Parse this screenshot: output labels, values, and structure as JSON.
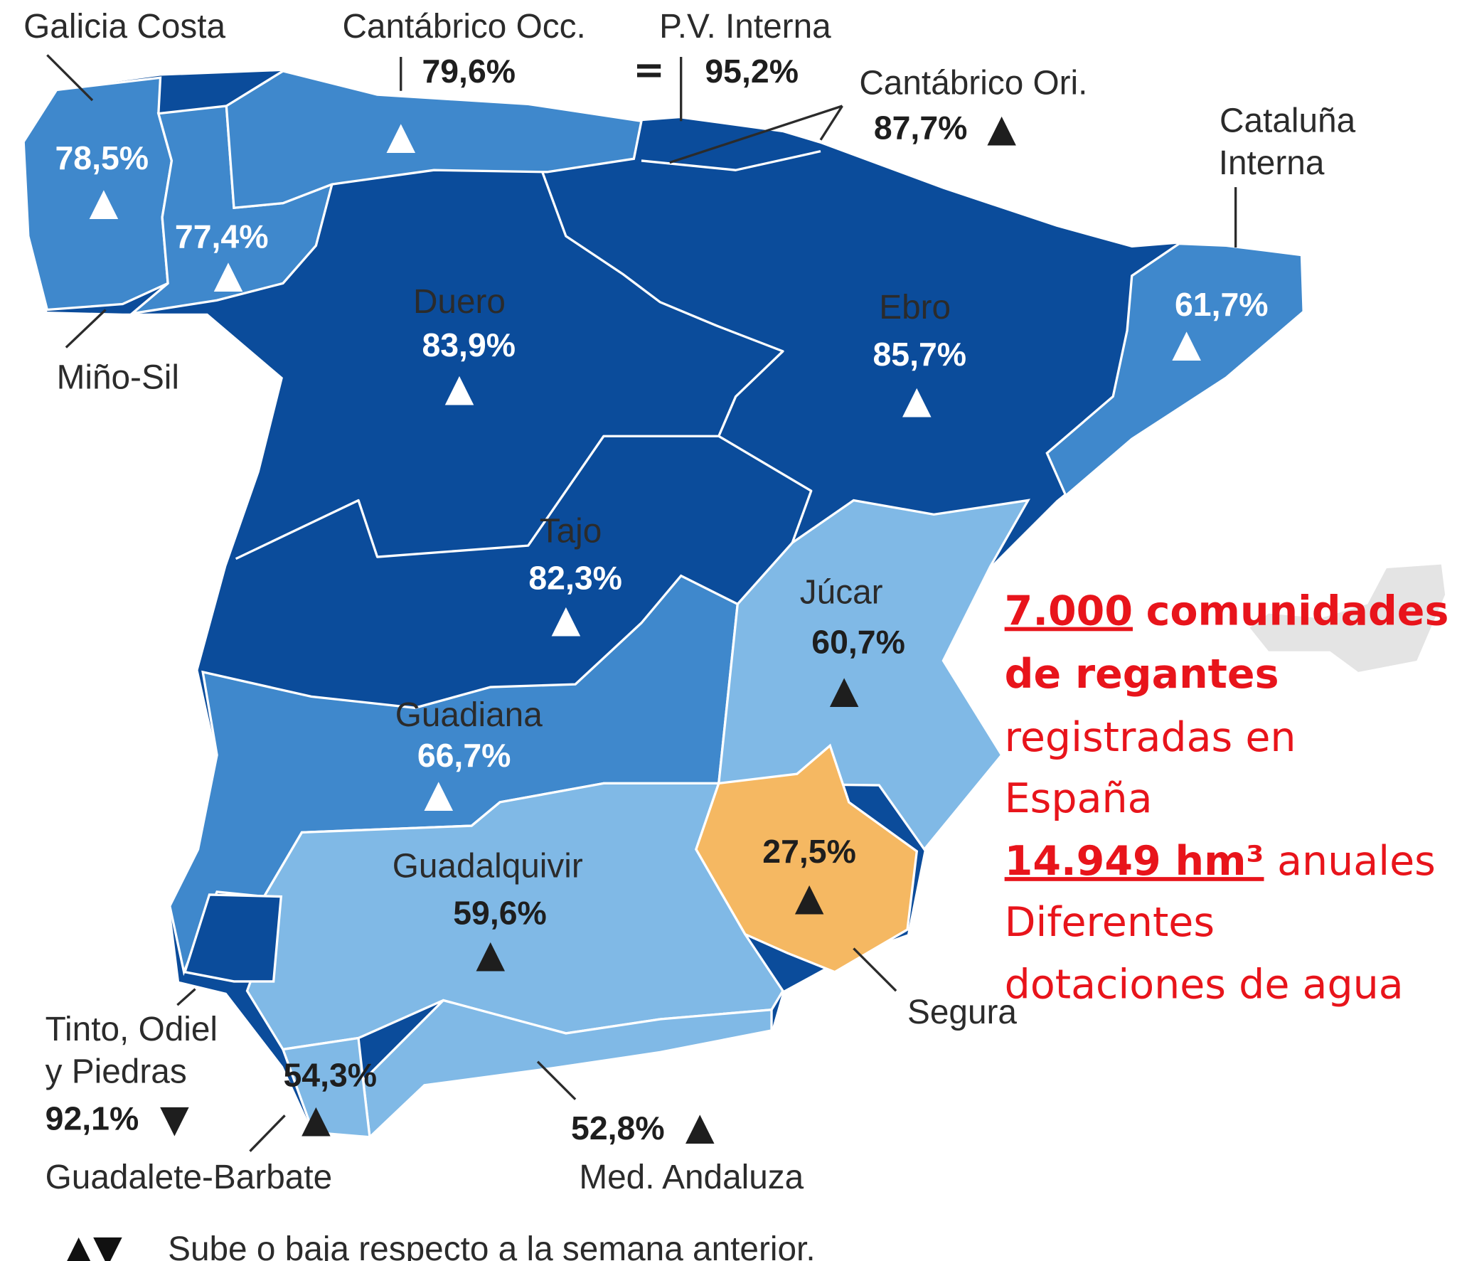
{
  "basins": [
    {
      "name": [
        "Galicia Costa"
      ],
      "value": "78,5%",
      "trend": "▲"
    },
    {
      "name": [
        "Cantábrico Occ."
      ],
      "value": "79,6%",
      "trend": "▲"
    },
    {
      "name": [
        "P.V. Interna"
      ],
      "value": "95,2%",
      "trend": "="
    },
    {
      "name": [
        "Cantábrico Ori."
      ],
      "value": "87,7%",
      "trend": "▲"
    },
    {
      "name": [
        "Cataluña",
        "Interna"
      ],
      "value": "61,7%",
      "trend": "▲"
    },
    {
      "name": [
        "Miño-Sil"
      ],
      "value": "77,4%",
      "trend": "▲"
    },
    {
      "name": [
        "Duero"
      ],
      "value": "83,9%",
      "trend": "▲"
    },
    {
      "name": [
        "Ebro"
      ],
      "value": "85,7%",
      "trend": "▲"
    },
    {
      "name": [
        "Tajo"
      ],
      "value": "82,3%",
      "trend": "▲"
    },
    {
      "name": [
        "Júcar"
      ],
      "value": "60,7%",
      "trend": "▲"
    },
    {
      "name": [
        "Guadiana"
      ],
      "value": "66,7%",
      "trend": "▲"
    },
    {
      "name": [
        "Segura"
      ],
      "value": "27,5%",
      "trend": "▲"
    },
    {
      "name": [
        "Guadalquivir"
      ],
      "value": "59,6%",
      "trend": "▲"
    },
    {
      "name": [
        "Tinto, Odiel",
        "y Piedras"
      ],
      "value": "92,1%",
      "trend": "▼"
    },
    {
      "name": [
        "Guadalete-Barbate"
      ],
      "value": "54,3%",
      "trend": "▲"
    },
    {
      "name": [
        "Med. Andaluza"
      ],
      "value": "52,8%",
      "trend": "▲"
    }
  ],
  "legend": {
    "symbols": "▲▼",
    "text": "Sube o baja respecto a la semana anterior."
  },
  "annotation": {
    "lines": [
      [
        "7.000",
        "comunidades"
      ],
      [
        "de regantes"
      ],
      [
        "registradas en"
      ],
      [
        "España"
      ],
      [
        "14.949 hm³",
        "anuales"
      ],
      [
        "Diferentes"
      ],
      [
        "dotaciones de agua"
      ]
    ]
  }
}
